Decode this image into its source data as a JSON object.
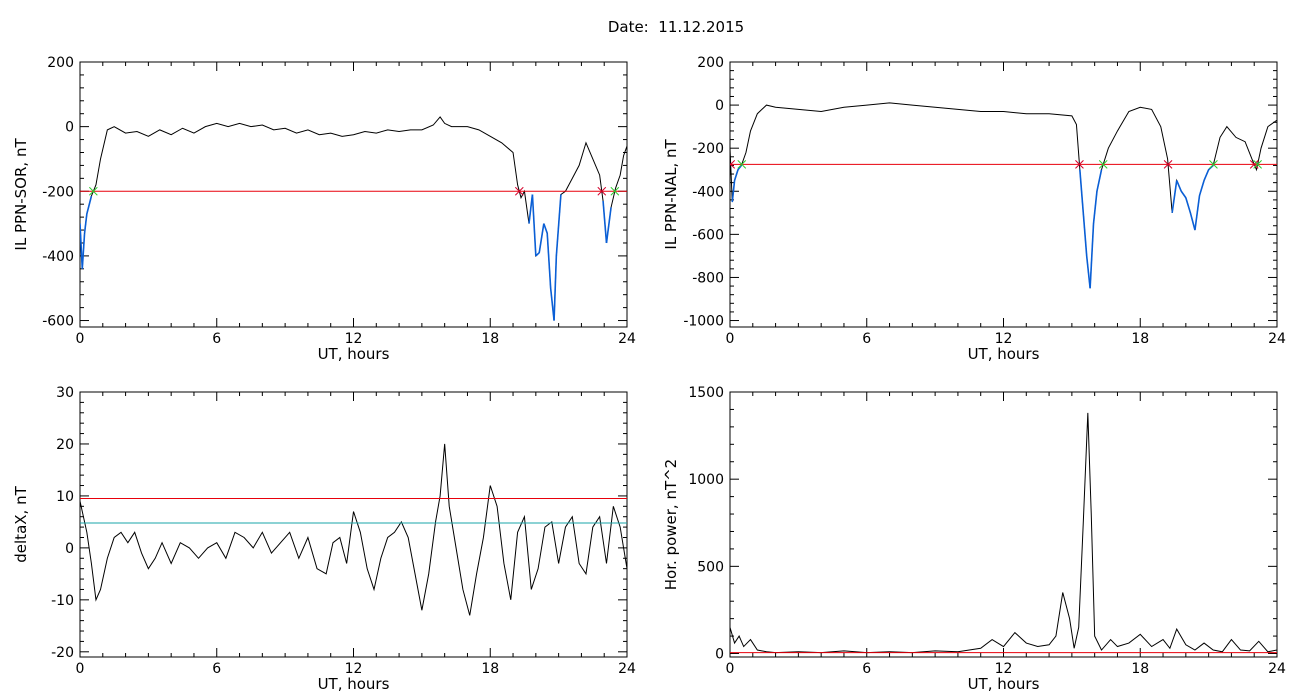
{
  "date_label": "Date:  11.12.2015",
  "colors": {
    "line": "#000000",
    "threshold_red": "#e8000b",
    "threshold_cyan": "#1aa5a8",
    "highlight_blue": "#0a5fd6",
    "marker_red": "#d4002a",
    "marker_green": "#2ecc2e",
    "marker_blue": "#1e6fd9"
  },
  "chart_data": [
    {
      "type": "line",
      "xlabel": "UT, hours",
      "ylabel": "IL PPN-SOR, nT",
      "xlim": [
        0,
        24
      ],
      "ylim": [
        -620,
        200
      ],
      "xticks": [
        0,
        6,
        12,
        18,
        24
      ],
      "yticks": [
        200,
        0,
        -200,
        -400,
        -600
      ],
      "x": [
        0,
        0.1,
        0.2,
        0.3,
        0.5,
        0.7,
        0.9,
        1.2,
        1.5,
        2,
        2.5,
        3,
        3.5,
        4,
        4.5,
        5,
        5.5,
        6,
        6.5,
        7,
        7.5,
        8,
        8.5,
        9,
        9.5,
        10,
        10.5,
        11,
        11.5,
        12,
        12.5,
        13,
        13.5,
        14,
        14.5,
        15,
        15.5,
        15.8,
        16,
        16.3,
        16.6,
        17,
        17.5,
        18,
        18.5,
        19,
        19.2,
        19.35,
        19.5,
        19.7,
        19.85,
        20,
        20.15,
        20.35,
        20.5,
        20.65,
        20.8,
        20.9,
        21.1,
        21.3,
        21.6,
        21.9,
        22.2,
        22.5,
        22.8,
        22.95,
        23.1,
        23.3,
        23.5,
        23.7,
        23.85,
        24
      ],
      "y": [
        -300,
        -440,
        -330,
        -270,
        -215,
        -180,
        -100,
        -10,
        0,
        -20,
        -15,
        -30,
        -10,
        -25,
        -5,
        -20,
        0,
        10,
        0,
        10,
        0,
        5,
        -10,
        -5,
        -20,
        -10,
        -25,
        -20,
        -30,
        -25,
        -15,
        -20,
        -10,
        -15,
        -10,
        -10,
        5,
        30,
        10,
        0,
        0,
        0,
        -10,
        -30,
        -50,
        -80,
        -180,
        -220,
        -200,
        -300,
        -210,
        -400,
        -390,
        -300,
        -330,
        -500,
        -600,
        -400,
        -210,
        -200,
        -160,
        -120,
        -50,
        -100,
        -150,
        -230,
        -360,
        -250,
        -190,
        -150,
        -90,
        -60
      ],
      "threshold_red": -200,
      "highlight_threshold": -200
    },
    {
      "type": "line",
      "xlabel": "UT, hours",
      "ylabel": "IL PPN-NAL, nT",
      "xlim": [
        0,
        24
      ],
      "ylim": [
        -1030,
        200
      ],
      "xticks": [
        0,
        6,
        12,
        18,
        24
      ],
      "yticks": [
        200,
        0,
        -200,
        -400,
        -600,
        -800,
        -1000
      ],
      "x": [
        0,
        0.1,
        0.2,
        0.35,
        0.5,
        0.7,
        0.9,
        1.2,
        1.6,
        2,
        3,
        4,
        5,
        6,
        7,
        8,
        9,
        10,
        11,
        12,
        13,
        14,
        15,
        15.2,
        15.35,
        15.5,
        15.65,
        15.8,
        15.95,
        16.1,
        16.3,
        16.6,
        17,
        17.5,
        18,
        18.5,
        18.9,
        19.2,
        19.4,
        19.6,
        19.8,
        20,
        20.2,
        20.4,
        20.6,
        20.8,
        21,
        21.2,
        21.5,
        21.8,
        22.2,
        22.6,
        22.9,
        23.1,
        23.3,
        23.6,
        24
      ],
      "y": [
        -200,
        -450,
        -350,
        -300,
        -280,
        -220,
        -120,
        -40,
        0,
        -10,
        -20,
        -30,
        -10,
        0,
        10,
        0,
        -10,
        -20,
        -30,
        -30,
        -40,
        -40,
        -50,
        -90,
        -300,
        -500,
        -700,
        -850,
        -550,
        -400,
        -300,
        -200,
        -120,
        -30,
        -10,
        -20,
        -100,
        -250,
        -500,
        -350,
        -400,
        -430,
        -500,
        -580,
        -420,
        -350,
        -300,
        -280,
        -150,
        -100,
        -150,
        -170,
        -250,
        -300,
        -200,
        -100,
        -70
      ],
      "threshold_red": -275,
      "highlight_threshold": -275
    },
    {
      "type": "line",
      "xlabel": "UT, hours",
      "ylabel": "deltaX, nT",
      "xlim": [
        0,
        24
      ],
      "ylim": [
        -21,
        30
      ],
      "xticks": [
        0,
        6,
        12,
        18,
        24
      ],
      "yticks": [
        30,
        20,
        10,
        0,
        -10,
        -20
      ],
      "x": [
        0,
        0.3,
        0.5,
        0.7,
        0.9,
        1.2,
        1.5,
        1.8,
        2.1,
        2.4,
        2.7,
        3,
        3.3,
        3.6,
        4,
        4.4,
        4.8,
        5.2,
        5.6,
        6,
        6.4,
        6.8,
        7.2,
        7.6,
        8,
        8.4,
        8.8,
        9.2,
        9.6,
        10,
        10.4,
        10.8,
        11.1,
        11.4,
        11.7,
        12,
        12.3,
        12.6,
        12.9,
        13.2,
        13.5,
        13.8,
        14.1,
        14.4,
        14.7,
        15,
        15.3,
        15.6,
        15.8,
        16,
        16.2,
        16.5,
        16.8,
        17.1,
        17.4,
        17.7,
        18,
        18.3,
        18.6,
        18.9,
        19.2,
        19.5,
        19.8,
        20.1,
        20.4,
        20.7,
        21,
        21.3,
        21.6,
        21.9,
        22.2,
        22.5,
        22.8,
        23.1,
        23.4,
        23.7,
        24
      ],
      "y": [
        9,
        3,
        -3,
        -10,
        -8,
        -2,
        2,
        3,
        1,
        3,
        -1,
        -4,
        -2,
        1,
        -3,
        1,
        0,
        -2,
        0,
        1,
        -2,
        3,
        2,
        0,
        3,
        -1,
        1,
        3,
        -2,
        2,
        -4,
        -5,
        1,
        2,
        -3,
        7,
        3,
        -4,
        -8,
        -2,
        2,
        3,
        5,
        2,
        -5,
        -12,
        -5,
        5,
        10,
        20,
        8,
        0,
        -8,
        -13,
        -5,
        2,
        12,
        8,
        -3,
        -10,
        3,
        6,
        -8,
        -4,
        4,
        5,
        -3,
        4,
        6,
        -3,
        -5,
        4,
        6,
        -3,
        8,
        4,
        -4
      ],
      "threshold_red": 9.5,
      "threshold_cyan": 4.8
    },
    {
      "type": "line",
      "xlabel": "UT, hours",
      "ylabel": "Hor. power, nT^2",
      "xlim": [
        0,
        24
      ],
      "ylim": [
        -20,
        1500
      ],
      "xticks": [
        0,
        6,
        12,
        18,
        24
      ],
      "yticks": [
        1500,
        1000,
        500,
        0
      ],
      "x": [
        0,
        0.2,
        0.4,
        0.6,
        0.9,
        1.2,
        1.6,
        2,
        3,
        4,
        5,
        6,
        7,
        8,
        9,
        10,
        11,
        11.5,
        12,
        12.5,
        13,
        13.5,
        14,
        14.3,
        14.6,
        14.9,
        15.1,
        15.3,
        15.5,
        15.7,
        15.85,
        16,
        16.3,
        16.7,
        17,
        17.5,
        18,
        18.5,
        19,
        19.3,
        19.6,
        20,
        20.4,
        20.8,
        21.2,
        21.6,
        22,
        22.4,
        22.8,
        23.2,
        23.6,
        24
      ],
      "y": [
        150,
        60,
        100,
        40,
        80,
        20,
        10,
        5,
        10,
        5,
        15,
        5,
        10,
        5,
        15,
        10,
        30,
        80,
        40,
        120,
        60,
        40,
        50,
        100,
        350,
        200,
        30,
        150,
        750,
        1380,
        800,
        100,
        20,
        80,
        40,
        60,
        110,
        40,
        80,
        30,
        140,
        50,
        20,
        60,
        20,
        10,
        80,
        20,
        15,
        70,
        10,
        20
      ],
      "threshold_red": 5
    }
  ]
}
